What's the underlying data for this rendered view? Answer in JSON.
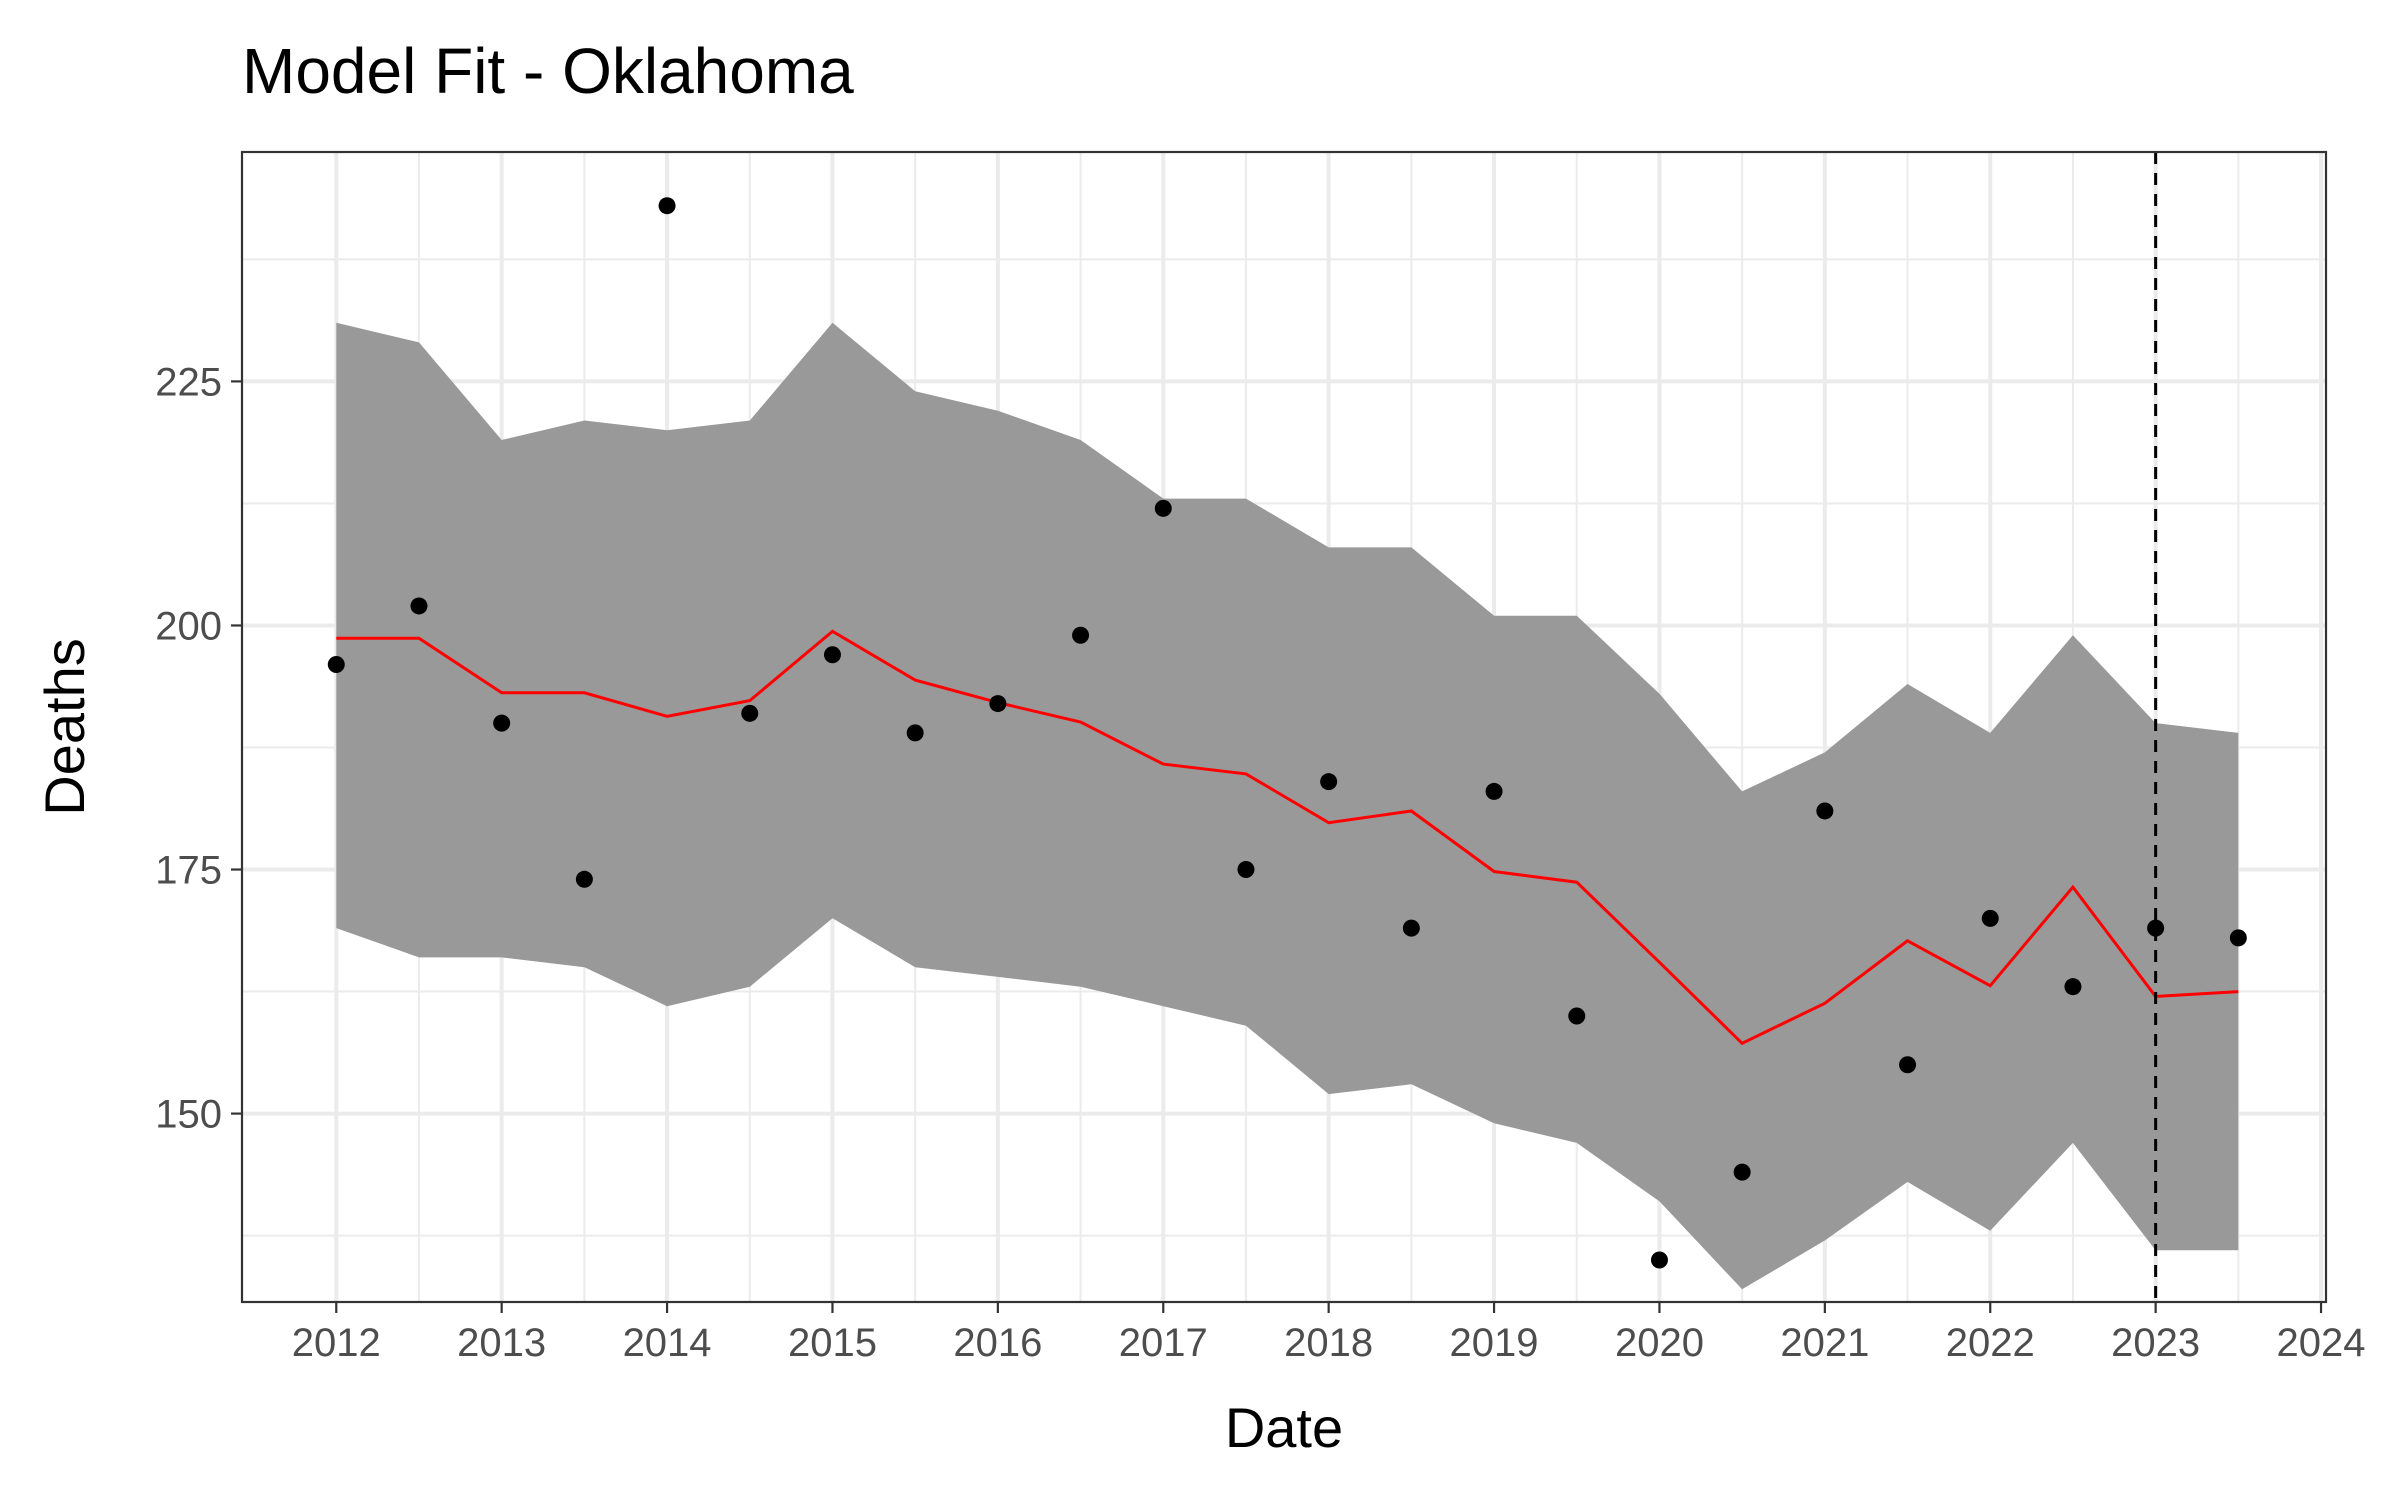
{
  "chart_data": {
    "type": "line",
    "title": "Model Fit - Oklahoma",
    "xlabel": "Date",
    "ylabel": "Deaths",
    "x_ticks": [
      "2012",
      "2013",
      "2014",
      "2015",
      "2016",
      "2017",
      "2018",
      "2019",
      "2020",
      "2021",
      "2022",
      "2023",
      "2024"
    ],
    "y_ticks": [
      "150",
      "175",
      "200",
      "225"
    ],
    "xlim": [
      2011.43,
      2024.03
    ],
    "ylim": [
      130.7,
      248.5
    ],
    "grid": true,
    "legend": "none",
    "forecast_start": 2023.0,
    "colors": {
      "band": "#999999",
      "fit_line": "#ff0000",
      "points": "#000000",
      "cutoff_line": "#000000",
      "grid": "#ebebeb"
    },
    "x": [
      2012.0,
      2012.5,
      2013.0,
      2013.5,
      2014.0,
      2014.5,
      2015.0,
      2015.5,
      2016.0,
      2016.5,
      2017.0,
      2017.5,
      2018.0,
      2018.5,
      2019.0,
      2019.5,
      2020.0,
      2020.5,
      2021.0,
      2021.5,
      2022.0,
      2022.5,
      2023.0,
      2023.5
    ],
    "series": [
      {
        "kind": "points",
        "values": [
          196,
          202,
          190,
          174,
          243,
          191,
          197,
          189,
          192,
          199,
          212,
          175,
          184,
          169,
          183,
          160,
          135,
          144,
          181,
          155,
          170,
          163,
          169,
          168
        ]
      },
      {
        "kind": "fit",
        "values": [
          198.7,
          198.7,
          193.1,
          193.1,
          190.7,
          192.3,
          199.4,
          194.4,
          192.1,
          190.1,
          185.8,
          184.8,
          179.8,
          181.0,
          174.8,
          173.7,
          165.5,
          157.2,
          161.3,
          167.7,
          163.1,
          173.2,
          162.0,
          162.5
        ]
      },
      {
        "kind": "upper",
        "values": [
          231,
          229,
          219,
          221,
          220,
          221,
          231,
          224,
          222,
          219,
          213,
          213,
          208,
          208,
          201,
          201,
          193,
          183,
          187,
          194,
          189,
          199,
          190,
          189
        ]
      },
      {
        "kind": "lower",
        "values": [
          169,
          166,
          166,
          165,
          161,
          163,
          170,
          165,
          164,
          163,
          161,
          159,
          152,
          153,
          149,
          147,
          141,
          132,
          137,
          143,
          138,
          147,
          136,
          136
        ]
      }
    ]
  }
}
